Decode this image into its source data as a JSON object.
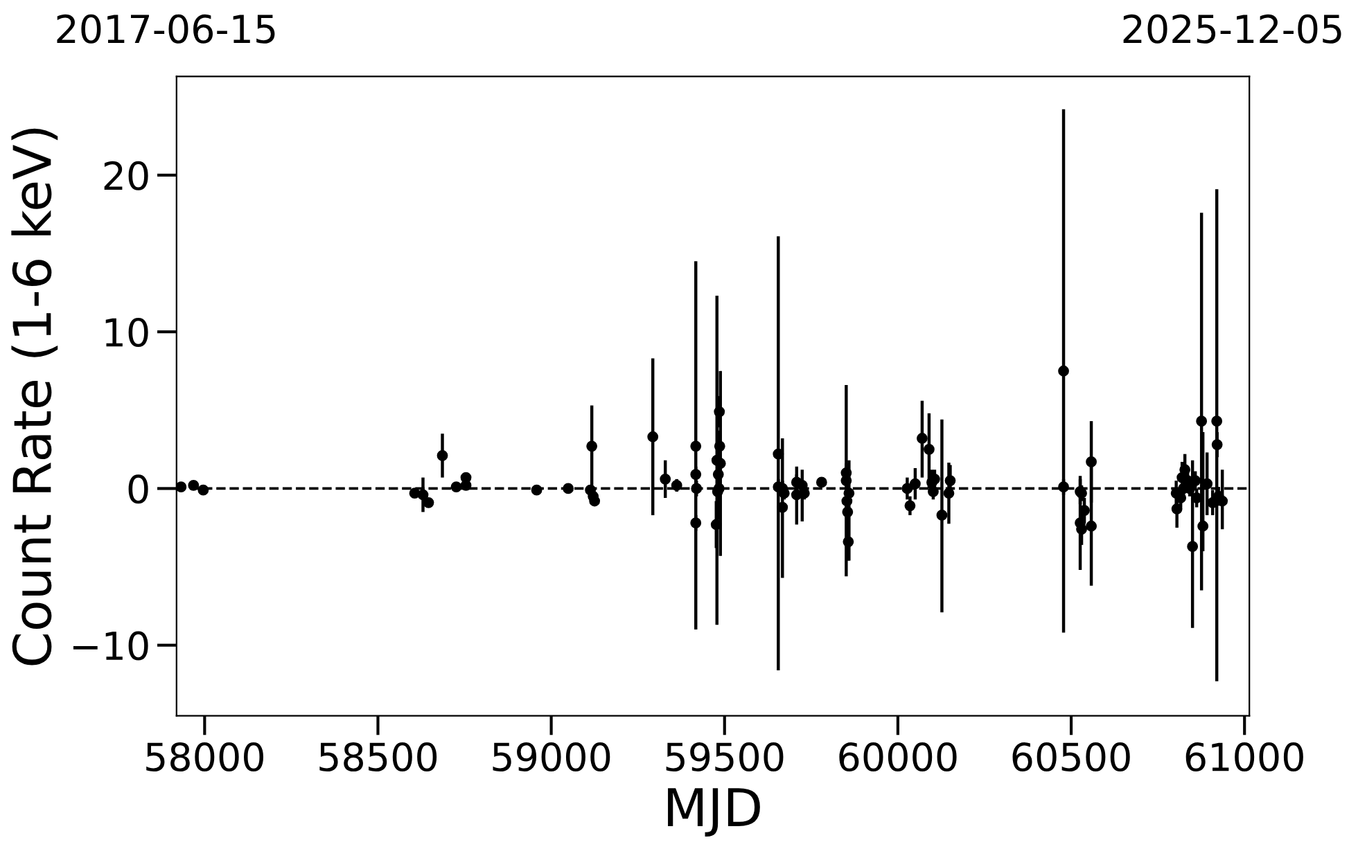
{
  "chart_data": {
    "type": "scatter",
    "xlabel": "MJD",
    "ylabel": "Count Rate (1-6 keV)",
    "xlim": [
      57919,
      61014
    ],
    "xticks": [
      58000,
      58500,
      59000,
      59500,
      60000,
      60500,
      61000
    ],
    "ylim": [
      -14.5,
      26.3
    ],
    "yticks": [
      -10,
      0,
      10,
      20
    ],
    "annotations": [
      "2017-06-15",
      "2025-12-05"
    ],
    "marker": "circle",
    "grid": false,
    "ref_lines": [
      {
        "axis": "y",
        "value": 0,
        "color": "#000000",
        "line_style": "dashed"
      }
    ],
    "series": [
      {
        "color": "#000000",
        "x": [
          57932,
          57968,
          57996,
          58606,
          58630,
          58646,
          58686,
          58726,
          58754,
          58754,
          58958,
          59049,
          59113,
          59117,
          59121,
          59125,
          59293,
          59329,
          59362,
          59417,
          59417,
          59419,
          59417,
          59485,
          59486,
          59478,
          59488,
          59482,
          59484,
          59480,
          59476,
          59655,
          59655,
          59667,
          59667,
          59672,
          59708,
          59708,
          59724,
          59730,
          59780,
          59851,
          59851,
          59853,
          59855,
          59857,
          59859,
          60027,
          60035,
          60050,
          60070,
          60090,
          60098,
          60102,
          60106,
          60127,
          60147,
          60151,
          60478,
          60478,
          60526,
          60526,
          60530,
          60530,
          60538,
          60558,
          60558,
          60803,
          60805,
          60816,
          60820,
          60824,
          60828,
          60836,
          60842,
          60850,
          60858,
          60862,
          60876,
          60880,
          60892,
          60908,
          60920,
          60921,
          60925,
          60936
        ],
        "values": [
          0.1,
          0.2,
          -0.1,
          -0.3,
          -0.4,
          -0.9,
          2.1,
          0.1,
          0.2,
          0.7,
          -0.1,
          0.0,
          -0.1,
          2.7,
          -0.5,
          -0.8,
          3.3,
          0.6,
          0.2,
          2.7,
          0.9,
          0.0,
          -2.2,
          4.9,
          2.7,
          1.8,
          1.6,
          0.9,
          0.0,
          -0.2,
          -2.3,
          2.2,
          0.1,
          -1.2,
          0.0,
          -0.3,
          0.4,
          -0.4,
          0.2,
          -0.3,
          0.4,
          1.0,
          0.5,
          -0.8,
          -1.5,
          -3.4,
          -0.3,
          0.0,
          -1.1,
          0.3,
          3.2,
          2.5,
          0.4,
          -0.2,
          0.6,
          -1.7,
          -0.3,
          0.5,
          7.5,
          0.1,
          -0.2,
          -2.2,
          -0.3,
          -2.6,
          -1.4,
          1.7,
          -2.4,
          -0.3,
          -1.3,
          -0.6,
          0.7,
          0.0,
          1.2,
          0.5,
          0.0,
          -3.7,
          0.5,
          -0.6,
          4.3,
          -2.4,
          0.3,
          -0.9,
          4.3,
          2.8,
          -0.5,
          -0.8
        ],
        "errors": [
          0.1,
          0.1,
          0.1,
          0.3,
          1.1,
          0.3,
          1.4,
          0.1,
          0.1,
          0.2,
          0.3,
          0.1,
          0.3,
          2.6,
          0.3,
          0.3,
          5.0,
          1.2,
          0.4,
          [
            -9.0,
            14.5
          ],
          0.5,
          0.5,
          0.5,
          1.0,
          1.0,
          [
            -8.7,
            12.3
          ],
          [
            -4.3,
            7.5
          ],
          1.5,
          2.0,
          1.0,
          1.5,
          [
            -11.6,
            16.1
          ],
          0.5,
          [
            -5.7,
            3.2
          ],
          0.5,
          0.4,
          0.5,
          [
            -2.3,
            1.4
          ],
          [
            -2.1,
            1.2
          ],
          0.4,
          0.3,
          0.6,
          [
            -5.6,
            6.6
          ],
          1.0,
          0.8,
          1.2,
          [
            -4.6,
            1.8
          ],
          0.7,
          0.6,
          1.0,
          [
            0.7,
            5.6
          ],
          [
            0.0,
            4.8
          ],
          0.8,
          0.5,
          0.6,
          [
            -7.9,
            4.4
          ],
          1.95,
          1.0,
          [
            -9.2,
            24.2
          ],
          0.5,
          0.8,
          [
            -5.2,
            0.8
          ],
          0.5,
          1.0,
          0.8,
          [
            -0.9,
            4.3
          ],
          [
            -6.2,
            1.6
          ],
          0.8,
          1.2,
          0.6,
          1.0,
          0.5,
          1.0,
          0.6,
          0.5,
          [
            -8.9,
            1.8
          ],
          0.6,
          0.6,
          [
            -6.5,
            17.6
          ],
          [
            -4.0,
            3.6
          ],
          2.0,
          0.8,
          [
            -12.3,
            19.1
          ],
          0.8,
          0.6,
          [
            -2.6,
            1.2
          ]
        ]
      }
    ]
  }
}
